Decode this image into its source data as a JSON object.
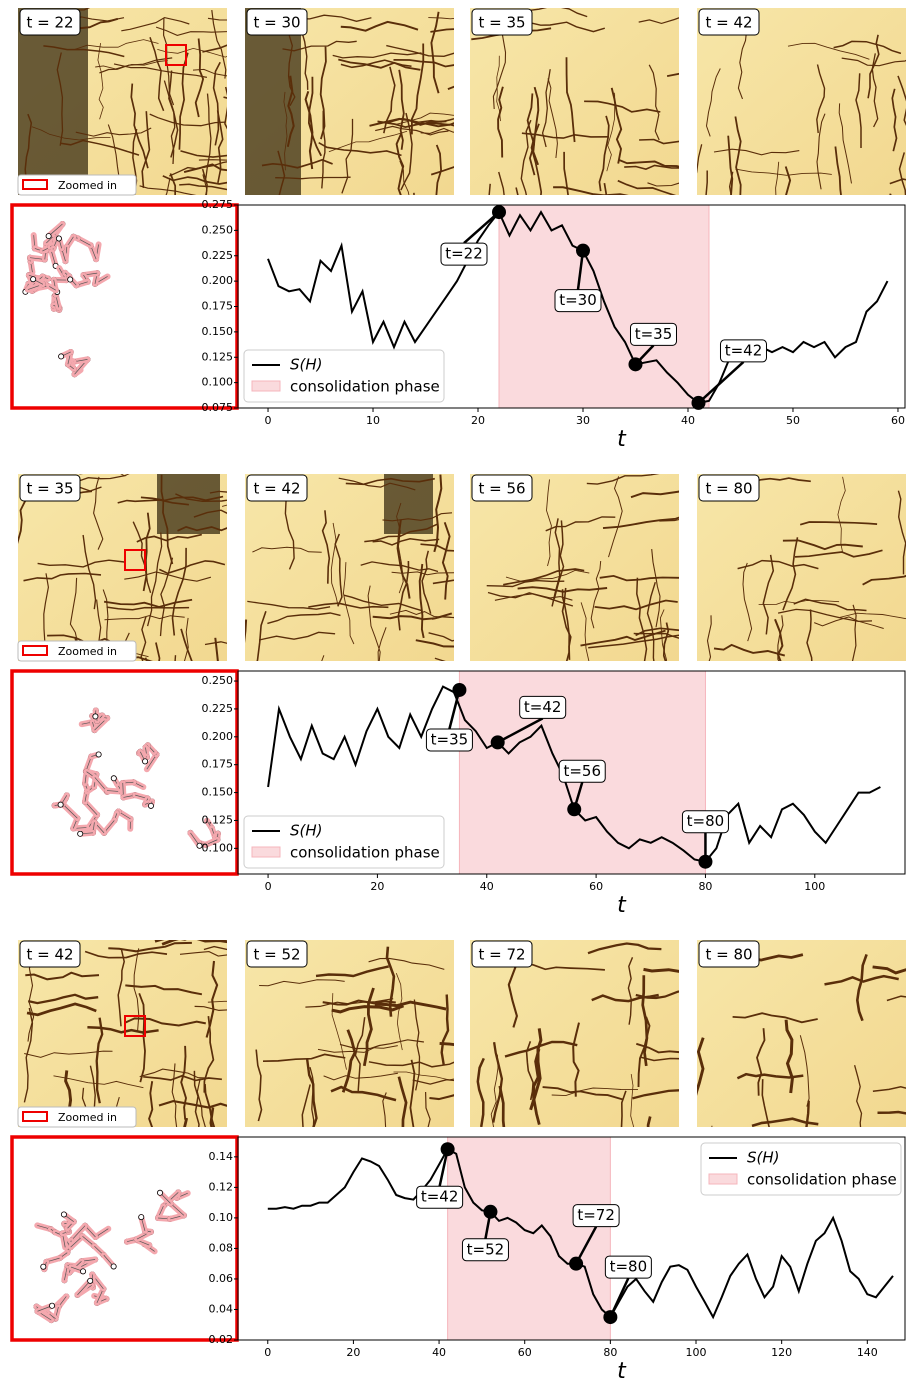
{
  "chart_data": [
    {
      "type": "line",
      "panels": [
        "t = 22",
        "t = 30",
        "t = 35",
        "t = 42"
      ],
      "zoom_legend": "Zoomed in",
      "xlabel": "t",
      "x": [
        0,
        1,
        2,
        3,
        4,
        5,
        6,
        7,
        8,
        9,
        10,
        11,
        12,
        13,
        14,
        15,
        16,
        17,
        18,
        19,
        20,
        21,
        22,
        23,
        24,
        25,
        26,
        27,
        28,
        29,
        30,
        31,
        32,
        33,
        34,
        35,
        36,
        37,
        38,
        39,
        40,
        41,
        42,
        43,
        44,
        45,
        46,
        47,
        48,
        49,
        50,
        51,
        52,
        53,
        54,
        55,
        56,
        57,
        58,
        59
      ],
      "series": [
        {
          "name": "S(H)",
          "color": "#000000",
          "values": [
            0.222,
            0.195,
            0.19,
            0.192,
            0.18,
            0.22,
            0.21,
            0.235,
            0.17,
            0.19,
            0.14,
            0.16,
            0.135,
            0.16,
            0.14,
            0.155,
            0.17,
            0.185,
            0.2,
            0.22,
            0.24,
            0.255,
            0.268,
            0.245,
            0.265,
            0.25,
            0.268,
            0.25,
            0.255,
            0.235,
            0.23,
            0.21,
            0.18,
            0.155,
            0.14,
            0.118,
            0.12,
            0.122,
            0.11,
            0.1,
            0.088,
            0.08,
            0.082,
            0.1,
            0.125,
            0.13,
            0.128,
            0.135,
            0.13,
            0.135,
            0.13,
            0.14,
            0.135,
            0.14,
            0.125,
            0.135,
            0.14,
            0.17,
            0.18,
            0.2
          ]
        }
      ],
      "span": {
        "name": "consolidation phase",
        "color": "#fadadd",
        "x": [
          22,
          42
        ]
      },
      "annotations": [
        {
          "label": "t=22",
          "x": 22,
          "y": 0.268
        },
        {
          "label": "t=30",
          "x": 30,
          "y": 0.23
        },
        {
          "label": "t=35",
          "x": 35,
          "y": 0.118
        },
        {
          "label": "t=42",
          "x": 41,
          "y": 0.08
        }
      ],
      "legend": "lower left",
      "xlim": [
        -2.86,
        60.67
      ],
      "xticks": [
        0,
        10,
        20,
        30,
        40,
        50,
        60
      ],
      "ylim": [
        0.075,
        0.275
      ],
      "yticks": [
        0.075,
        {
          "value": 0.1,
          "label": "0.100"
        },
        0.125,
        {
          "value": 0.15,
          "label": "0.150"
        },
        0.175,
        {
          "value": 0.2,
          "label": "0.200"
        },
        0.225,
        {
          "value": 0.25,
          "label": "0.250"
        },
        0.275
      ]
    },
    {
      "type": "line",
      "panels": [
        "t = 35",
        "t = 42",
        "t = 56",
        "t = 80"
      ],
      "zoom_legend": "Zoomed in",
      "xlabel": "t",
      "x": [
        0,
        2,
        4,
        6,
        8,
        10,
        12,
        14,
        16,
        18,
        20,
        22,
        24,
        26,
        28,
        30,
        32,
        34,
        36,
        38,
        40,
        42,
        44,
        46,
        48,
        50,
        52,
        54,
        56,
        58,
        60,
        62,
        64,
        66,
        68,
        70,
        72,
        74,
        76,
        78,
        80,
        82,
        84,
        86,
        88,
        90,
        92,
        94,
        96,
        98,
        100,
        102,
        104,
        106,
        108,
        110,
        112
      ],
      "series": [
        {
          "name": "S(H)",
          "color": "#000000",
          "values": [
            0.155,
            0.225,
            0.2,
            0.18,
            0.21,
            0.185,
            0.18,
            0.2,
            0.175,
            0.205,
            0.225,
            0.2,
            0.19,
            0.22,
            0.2,
            0.225,
            0.245,
            0.24,
            0.215,
            0.205,
            0.19,
            0.195,
            0.185,
            0.195,
            0.2,
            0.21,
            0.185,
            0.165,
            0.135,
            0.125,
            0.128,
            0.115,
            0.105,
            0.1,
            0.108,
            0.105,
            0.11,
            0.105,
            0.098,
            0.09,
            0.088,
            0.1,
            0.13,
            0.14,
            0.105,
            0.12,
            0.11,
            0.135,
            0.14,
            0.13,
            0.115,
            0.105,
            0.12,
            0.135,
            0.15,
            0.15,
            0.155
          ]
        }
      ],
      "span": {
        "name": "consolidation phase",
        "color": "#fadadd",
        "x": [
          35,
          80
        ]
      },
      "annotations": [
        {
          "label": "t=35",
          "x": 35,
          "y": 0.242
        },
        {
          "label": "t=42",
          "x": 42,
          "y": 0.195
        },
        {
          "label": "t=56",
          "x": 56,
          "y": 0.135
        },
        {
          "label": "t=80",
          "x": 80,
          "y": 0.088
        }
      ],
      "legend": "lower left",
      "xlim": [
        -5.5,
        116.5
      ],
      "xticks": [
        0,
        20,
        40,
        60,
        80,
        100
      ],
      "ylim": [
        0.077,
        0.259
      ],
      "yticks": [
        {
          "value": 0.1,
          "label": "0.100"
        },
        0.125,
        {
          "value": 0.15,
          "label": "0.150"
        },
        0.175,
        {
          "value": 0.2,
          "label": "0.200"
        },
        0.225,
        {
          "value": 0.25,
          "label": "0.250"
        }
      ]
    },
    {
      "type": "line",
      "panels": [
        "t = 42",
        "t = 52",
        "t = 72",
        "t = 80"
      ],
      "zoom_legend": "Zoomed in",
      "xlabel": "t",
      "x": [
        0,
        2,
        4,
        6,
        8,
        10,
        12,
        14,
        16,
        18,
        20,
        22,
        24,
        26,
        28,
        30,
        32,
        34,
        36,
        38,
        40,
        42,
        44,
        46,
        48,
        50,
        52,
        54,
        56,
        58,
        60,
        62,
        64,
        66,
        68,
        70,
        72,
        74,
        76,
        78,
        80,
        82,
        84,
        86,
        88,
        90,
        92,
        94,
        96,
        98,
        100,
        102,
        104,
        106,
        108,
        110,
        112,
        114,
        116,
        118,
        120,
        122,
        124,
        126,
        128,
        130,
        132,
        134,
        136,
        138,
        140,
        142,
        144,
        146
      ],
      "series": [
        {
          "name": "S(H)",
          "color": "#000000",
          "values": [
            0.106,
            0.106,
            0.107,
            0.106,
            0.108,
            0.108,
            0.11,
            0.11,
            0.115,
            0.12,
            0.13,
            0.139,
            0.137,
            0.134,
            0.125,
            0.115,
            0.113,
            0.112,
            0.118,
            0.125,
            0.135,
            0.145,
            0.142,
            0.12,
            0.11,
            0.105,
            0.104,
            0.098,
            0.1,
            0.097,
            0.092,
            0.09,
            0.095,
            0.088,
            0.075,
            0.07,
            0.07,
            0.068,
            0.05,
            0.04,
            0.035,
            0.045,
            0.055,
            0.06,
            0.052,
            0.045,
            0.058,
            0.068,
            0.069,
            0.066,
            0.055,
            0.045,
            0.035,
            0.048,
            0.062,
            0.07,
            0.076,
            0.06,
            0.048,
            0.055,
            0.075,
            0.068,
            0.052,
            0.07,
            0.085,
            0.09,
            0.1,
            0.085,
            0.065,
            0.06,
            0.05,
            0.048,
            0.055,
            0.062
          ]
        }
      ],
      "span": {
        "name": "consolidation phase",
        "color": "#fadadd",
        "x": [
          42,
          80
        ]
      },
      "annotations": [
        {
          "label": "t=42",
          "x": 42,
          "y": 0.145
        },
        {
          "label": "t=52",
          "x": 52,
          "y": 0.104
        },
        {
          "label": "t=72",
          "x": 72,
          "y": 0.07
        },
        {
          "label": "t=80",
          "x": 80,
          "y": 0.035
        }
      ],
      "legend": "upper right",
      "xlim": [
        -6.95,
        148.8
      ],
      "xticks": [
        0,
        20,
        40,
        60,
        80,
        100,
        120,
        140
      ],
      "ylim": [
        0.02,
        0.153
      ],
      "yticks": [
        0.02,
        0.04,
        0.06,
        0.08,
        {
          "value": 0.1,
          "label": "0.10"
        },
        0.12,
        0.14
      ]
    }
  ]
}
